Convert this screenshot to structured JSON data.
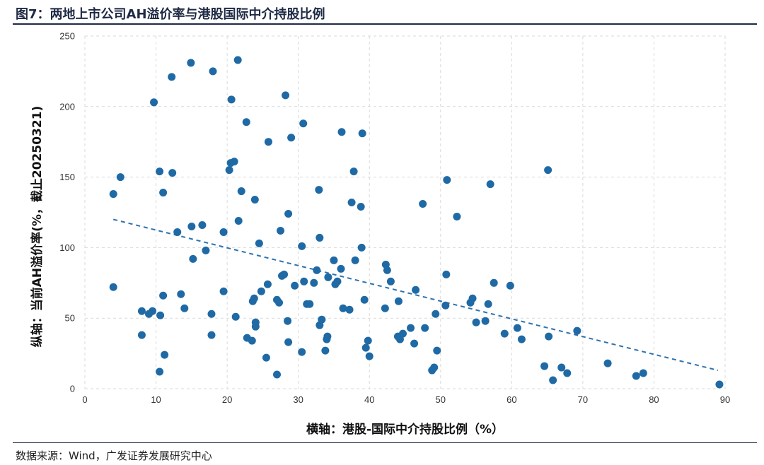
{
  "title": "图7：两地上市公司AH溢价率与港股国际中介持股比例",
  "source": "数据来源：Wind，广发证券发展研究中心",
  "chart_data": {
    "type": "scatter",
    "title": "图7：两地上市公司AH溢价率与港股国际中介持股比例",
    "xlabel": "横轴：港股-国际中介持股比例（%）",
    "ylabel": "纵轴：当前AH溢价率(%，截止20250321)",
    "xlim": [
      0,
      90
    ],
    "ylim": [
      0,
      250
    ],
    "xticks": [
      "0",
      "10",
      "20",
      "30",
      "40",
      "50",
      "60",
      "70",
      "80",
      "90"
    ],
    "yticks": [
      "0",
      "50",
      "100",
      "150",
      "200",
      "250"
    ],
    "grid": "dashed",
    "marker_color": "#1f6aa5",
    "trendline": {
      "style": "dashed",
      "color": "#2e73b0",
      "x": [
        4,
        89
      ],
      "y": [
        120,
        13
      ]
    },
    "points": [
      [
        4,
        138
      ],
      [
        4,
        72
      ],
      [
        5,
        150
      ],
      [
        8,
        55
      ],
      [
        8,
        38
      ],
      [
        9,
        53
      ],
      [
        9.5,
        55
      ],
      [
        9.7,
        203
      ],
      [
        10.5,
        154
      ],
      [
        10.5,
        12
      ],
      [
        10.6,
        52
      ],
      [
        11,
        139
      ],
      [
        11,
        66
      ],
      [
        11.2,
        24
      ],
      [
        12.2,
        221
      ],
      [
        12.3,
        153
      ],
      [
        13,
        111
      ],
      [
        13.5,
        67
      ],
      [
        14,
        57
      ],
      [
        14.9,
        231
      ],
      [
        15,
        115
      ],
      [
        15.2,
        92
      ],
      [
        16.5,
        116
      ],
      [
        17,
        98
      ],
      [
        17.8,
        53
      ],
      [
        17.8,
        38
      ],
      [
        18,
        225
      ],
      [
        19.5,
        111
      ],
      [
        19.5,
        69
      ],
      [
        20.3,
        155
      ],
      [
        20.5,
        160
      ],
      [
        20.6,
        205
      ],
      [
        21,
        161
      ],
      [
        21.2,
        51
      ],
      [
        21.5,
        233
      ],
      [
        21.6,
        119
      ],
      [
        22,
        140
      ],
      [
        22.7,
        189
      ],
      [
        22.8,
        36
      ],
      [
        23.5,
        34
      ],
      [
        23.6,
        62
      ],
      [
        23.8,
        64
      ],
      [
        23.9,
        134
      ],
      [
        24,
        44
      ],
      [
        24,
        47
      ],
      [
        24.5,
        103
      ],
      [
        24.8,
        69
      ],
      [
        25.5,
        22
      ],
      [
        25.7,
        74
      ],
      [
        25.8,
        175
      ],
      [
        27,
        63
      ],
      [
        27,
        10
      ],
      [
        27.3,
        61
      ],
      [
        27.5,
        112
      ],
      [
        27.7,
        80
      ],
      [
        28,
        81
      ],
      [
        28.2,
        208
      ],
      [
        28.5,
        48
      ],
      [
        28.6,
        33
      ],
      [
        28.6,
        124
      ],
      [
        29,
        178
      ],
      [
        29.5,
        73
      ],
      [
        30.5,
        101
      ],
      [
        30.5,
        26
      ],
      [
        30.7,
        188
      ],
      [
        30.8,
        76
      ],
      [
        31.2,
        60
      ],
      [
        31.6,
        60
      ],
      [
        32.2,
        75
      ],
      [
        32.6,
        84
      ],
      [
        32.9,
        141
      ],
      [
        33,
        107
      ],
      [
        33,
        45
      ],
      [
        33.3,
        49
      ],
      [
        33.8,
        27
      ],
      [
        34,
        35
      ],
      [
        34.1,
        37
      ],
      [
        34.2,
        79
      ],
      [
        35,
        91
      ],
      [
        35.2,
        74
      ],
      [
        35.5,
        76
      ],
      [
        36,
        85
      ],
      [
        36.1,
        182
      ],
      [
        36.3,
        57
      ],
      [
        37.2,
        56
      ],
      [
        37.5,
        132
      ],
      [
        37.8,
        154
      ],
      [
        38,
        91
      ],
      [
        38.8,
        129
      ],
      [
        38.9,
        100
      ],
      [
        39,
        181
      ],
      [
        39.3,
        63
      ],
      [
        39.5,
        29
      ],
      [
        39.8,
        34
      ],
      [
        40,
        23
      ],
      [
        42.2,
        57
      ],
      [
        42.3,
        88
      ],
      [
        42.5,
        84
      ],
      [
        43,
        76
      ],
      [
        44,
        37
      ],
      [
        44.1,
        62
      ],
      [
        44.3,
        35
      ],
      [
        44.7,
        39
      ],
      [
        45.8,
        43
      ],
      [
        46.3,
        32
      ],
      [
        46.5,
        70
      ],
      [
        47.5,
        131
      ],
      [
        47.8,
        43
      ],
      [
        48.8,
        13
      ],
      [
        49.1,
        15
      ],
      [
        49.3,
        53
      ],
      [
        49.5,
        27
      ],
      [
        50.7,
        59
      ],
      [
        50.8,
        81
      ],
      [
        50.9,
        148
      ],
      [
        52.3,
        122
      ],
      [
        54.2,
        61
      ],
      [
        54.5,
        64
      ],
      [
        55,
        47
      ],
      [
        56.3,
        48
      ],
      [
        56.7,
        60
      ],
      [
        57,
        145
      ],
      [
        57.5,
        75
      ],
      [
        59,
        39
      ],
      [
        59.8,
        73
      ],
      [
        60.8,
        43
      ],
      [
        61.4,
        35
      ],
      [
        64.6,
        16
      ],
      [
        65.1,
        155
      ],
      [
        65.2,
        37
      ],
      [
        65.8,
        6
      ],
      [
        67,
        15
      ],
      [
        67.8,
        11
      ],
      [
        69.2,
        41
      ],
      [
        73.5,
        18
      ],
      [
        77.5,
        9
      ],
      [
        78.5,
        11
      ],
      [
        89.2,
        3
      ]
    ]
  }
}
